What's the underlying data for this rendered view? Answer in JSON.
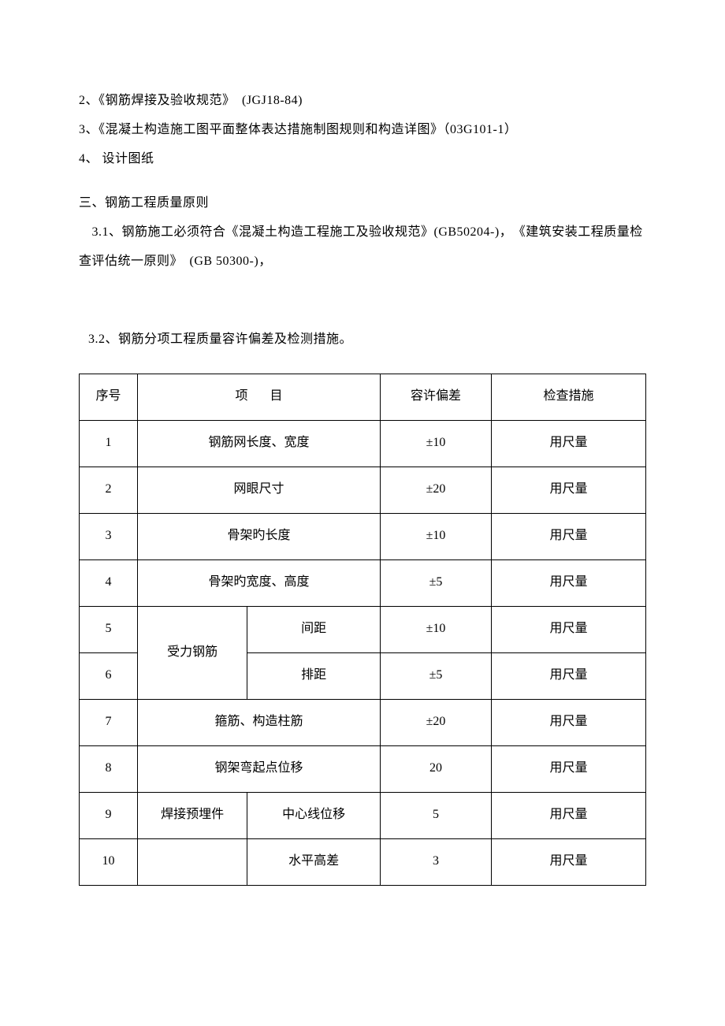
{
  "paragraphs": {
    "p1": "2、《钢筋焊接及验收规范》　(JGJ18-84)",
    "p2": "3、《混凝土构造施工图平面整体表达措施制图规则和构造详图》（03G101-1）",
    "p3": "4、 设计图纸",
    "sectionTitle": "三、钢筋工程质量原则",
    "p4": "　3.1、钢筋施工必须符合《混凝土构造工程施工及验收规范》(GB50204-)，　《建筑安装工程质量检查评估统一原则》　(GB 50300-)，",
    "tableIntro": "3.2、钢筋分项工程质量容许偏差及检测措施。"
  },
  "table": {
    "headers": {
      "seq": "序号",
      "item": "项目",
      "tolerance": "容许偏差",
      "method": "检查措施"
    },
    "rows": [
      {
        "seq": "1",
        "item": "钢筋网长度、宽度",
        "tol": "±10",
        "method": "用尺量",
        "span": "full"
      },
      {
        "seq": "2",
        "item": "网眼尺寸",
        "tol": "±20",
        "method": "用尺量",
        "span": "full"
      },
      {
        "seq": "3",
        "item": "骨架旳长度",
        "tol": "±10",
        "method": "用尺量",
        "span": "full"
      },
      {
        "seq": "4",
        "item": "骨架旳宽度、高度",
        "tol": "±5",
        "method": "用尺量",
        "span": "full"
      },
      {
        "seq": "5",
        "itemA": "受力钢筋",
        "itemB": "间距",
        "tol": "±10",
        "method": "用尺量",
        "span": "splitStart"
      },
      {
        "seq": "6",
        "itemB": "排距",
        "tol": "±5",
        "method": "用尺量",
        "span": "splitEnd"
      },
      {
        "seq": "7",
        "item": "箍筋、构造柱筋",
        "tol": "±20",
        "method": "用尺量",
        "span": "full"
      },
      {
        "seq": "8",
        "item": "钢架弯起点位移",
        "tol": "20",
        "method": "用尺量",
        "span": "full"
      },
      {
        "seq": "9",
        "itemA": "焊接预埋件",
        "itemB": "中心线位移",
        "tol": "5",
        "method": "用尺量",
        "span": "split9"
      },
      {
        "seq": "10",
        "itemB": "水平高差",
        "tol": "3",
        "method": "用尺量",
        "span": "split10"
      }
    ]
  },
  "colors": {
    "text": "#000000",
    "background": "#ffffff",
    "border": "#000000"
  }
}
